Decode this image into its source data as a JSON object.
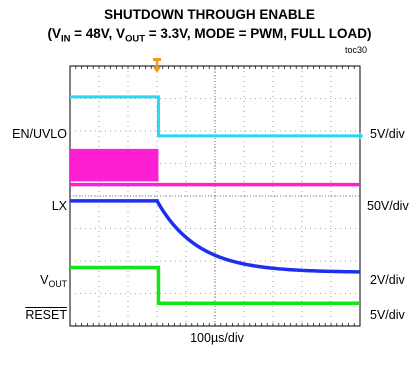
{
  "chart_data": {
    "type": "line",
    "title_line1": "SHUTDOWN THROUGH ENABLE",
    "title_line2": {
      "prefix": "(V",
      "sub1": "IN",
      "mid": " = 48V, V",
      "sub2": "OUT",
      "suffix": " = 3.3V, MODE = PWM, FULL LOAD)"
    },
    "figure_tag": "toc30",
    "time_scale": "100µs/div",
    "x_divisions": 10,
    "y_divisions": 8,
    "grid": true,
    "trigger_marker_div": 3,
    "series": [
      {
        "name": "EN/UVLO",
        "scale": "5V/div",
        "color": "#29d8f0",
        "level_pre_div": 7.05,
        "level_post_div": 5.85,
        "transition_div": 3.05
      },
      {
        "name": "LX",
        "scale": "50V/div",
        "color": "#ff1fd2",
        "switching_band_div": [
          4.45,
          5.45
        ],
        "baseline_div": 4.35,
        "switching_until_div": 3.05
      },
      {
        "name": "V",
        "name_sub": "OUT",
        "scale": "2V/div",
        "color": "#1f2ff0",
        "level_pre_div": 3.85,
        "final_level_div": 1.65,
        "decay_start_div": 3.0,
        "decay_tau_div": 1.4
      },
      {
        "name": "RESET",
        "inverted_label": true,
        "scale": "5V/div",
        "color": "#12e51a",
        "level_pre_div": 1.8,
        "level_post_div": 0.7,
        "transition_div": 3.05
      }
    ]
  }
}
